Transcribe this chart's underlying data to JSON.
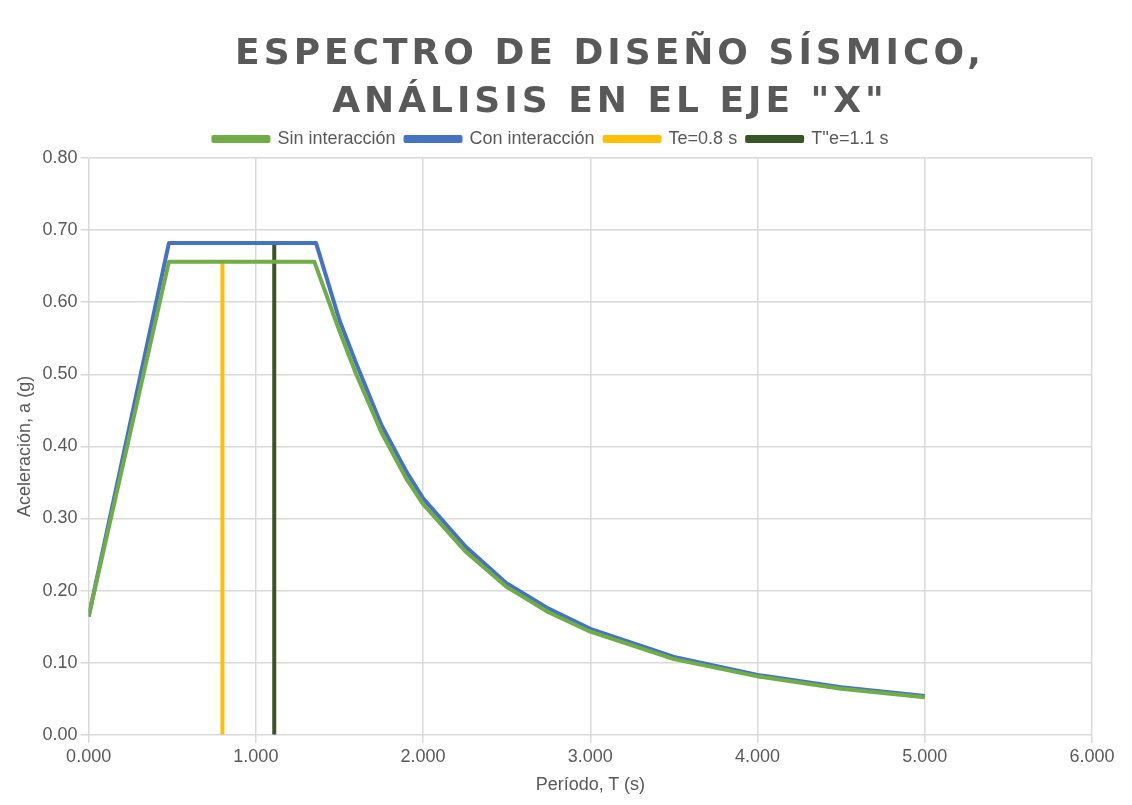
{
  "chart_data": {
    "type": "line",
    "title": "ESPECTRO DE DISEÑO SÍSMICO, ANÁLISIS EN EL EJE \"X\"",
    "xlabel": "Período, T (s)",
    "ylabel": "Aceleración, a (g)",
    "xlim": [
      0,
      6
    ],
    "xticks": [
      {
        "value": 0,
        "label": "0.000"
      },
      {
        "value": 1,
        "label": "1.000"
      },
      {
        "value": 2,
        "label": "2.000"
      },
      {
        "value": 3,
        "label": "3.000"
      },
      {
        "value": 4,
        "label": "4.000"
      },
      {
        "value": 5,
        "label": "5.000"
      },
      {
        "value": 6,
        "label": "6.000"
      }
    ],
    "ylim": [
      0,
      0.8
    ],
    "yticks": [
      {
        "value": 0,
        "label": "0.00"
      },
      {
        "value": 0.1,
        "label": "0.10"
      },
      {
        "value": 0.2,
        "label": "0.20"
      },
      {
        "value": 0.3,
        "label": "0.30"
      },
      {
        "value": 0.4,
        "label": "0.40"
      },
      {
        "value": 0.5,
        "label": "0.50"
      },
      {
        "value": 0.6,
        "label": "0.60"
      },
      {
        "value": 0.7,
        "label": "0.70"
      },
      {
        "value": 0.8,
        "label": "0.80"
      }
    ],
    "grid": true,
    "legend": "top",
    "marker": "none",
    "line_style": "solid",
    "series": [
      {
        "name": "Sin interacción",
        "color": "#70ad47",
        "x": [
          0,
          0.48,
          1.35,
          1.5,
          1.6,
          1.75,
          1.9,
          2,
          2.25,
          2.5,
          2.75,
          3,
          3.5,
          4,
          4.5,
          5
        ],
        "values": [
          0.164,
          0.656,
          0.656,
          0.56,
          0.5,
          0.42,
          0.355,
          0.32,
          0.255,
          0.205,
          0.17,
          0.143,
          0.105,
          0.081,
          0.064,
          0.052
        ]
      },
      {
        "name": "Con interacción",
        "color": "#4472c4",
        "x": [
          0,
          0.48,
          1.36,
          1.5,
          1.6,
          1.75,
          1.9,
          2,
          2.25,
          2.5,
          2.75,
          3,
          3.5,
          4,
          4.5,
          5
        ],
        "values": [
          0.164,
          0.682,
          0.682,
          0.575,
          0.515,
          0.43,
          0.365,
          0.328,
          0.262,
          0.21,
          0.175,
          0.147,
          0.108,
          0.083,
          0.066,
          0.054
        ]
      },
      {
        "name": "Te=0.8 s",
        "color": "#ffc000",
        "x": [
          0.8,
          0.8
        ],
        "values": [
          0,
          0.656
        ]
      },
      {
        "name": "T''e=1.1 s",
        "color": "#375623",
        "x": [
          1.11,
          1.11
        ],
        "values": [
          0,
          0.682
        ]
      }
    ]
  }
}
